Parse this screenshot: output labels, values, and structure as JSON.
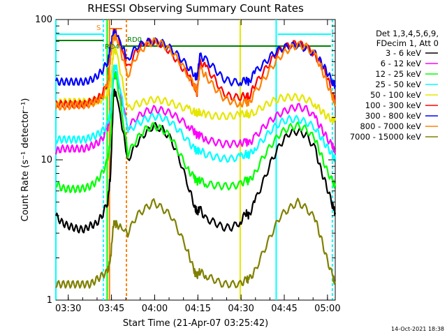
{
  "chart_data": {
    "type": "line",
    "title": "RHESSI Observing Summary Count Rates",
    "xlabel": "Start Time (21-Apr-07 03:25:42)",
    "ylabel": "Count Rate (s⁻¹ detector⁻¹)",
    "y_scale": "log",
    "ylim": [
      1,
      100
    ],
    "xlim_minutes": [
      0,
      97
    ],
    "x_ticks": [
      {
        "label": "03:30",
        "minute": 4.3
      },
      {
        "label": "03:45",
        "minute": 19.3
      },
      {
        "label": "04:00",
        "minute": 34.3
      },
      {
        "label": "04:15",
        "minute": 49.3
      },
      {
        "label": "04:30",
        "minute": 64.3
      },
      {
        "label": "04:45",
        "minute": 79.3
      },
      {
        "label": "05:00",
        "minute": 94.3
      }
    ],
    "y_ticks": [
      {
        "label": "1",
        "value": 1
      },
      {
        "label": "10",
        "value": 10
      },
      {
        "label": "100",
        "value": 100
      }
    ],
    "legend": {
      "header": [
        "Det 1,3,4,5,6,9,",
        "FDecim 1, Att 0"
      ],
      "placement": "right"
    },
    "annotations": {
      "saa_label": "S",
      "rd0_label": "RD0",
      "rd4_label": "RD4"
    },
    "series": [
      {
        "name": "3 - 6 keV",
        "color": "#000000",
        "x": [
          0,
          2,
          4,
          6,
          8,
          10,
          12,
          14,
          16,
          18,
          19,
          20,
          21,
          25,
          28,
          31,
          34,
          37,
          40,
          43,
          46,
          48,
          49,
          50,
          52,
          55,
          58,
          61,
          64,
          66,
          67,
          69,
          72,
          75,
          78,
          81,
          84,
          87,
          90,
          92,
          94,
          96,
          97
        ],
        "y": [
          4.0,
          3.6,
          3.4,
          3.3,
          3.2,
          3.2,
          3.4,
          3.5,
          4.0,
          5.0,
          8.0,
          30,
          30,
          10,
          13,
          15.5,
          17.5,
          16.5,
          14,
          10,
          6.5,
          4.8,
          4.2,
          4.5,
          3.8,
          3.6,
          3.3,
          3.3,
          3.6,
          4.2,
          4.0,
          5.0,
          7.0,
          10,
          13,
          15.5,
          16,
          15,
          12,
          8.5,
          6.5,
          4.8,
          4.2
        ]
      },
      {
        "name": "6 - 12 keV",
        "color": "#ff00ff",
        "x": [
          0,
          2,
          4,
          6,
          8,
          10,
          12,
          14,
          16,
          18,
          19,
          20,
          21,
          25,
          28,
          31,
          34,
          37,
          40,
          43,
          46,
          48,
          49,
          50,
          52,
          55,
          58,
          61,
          64,
          66,
          67,
          69,
          72,
          75,
          78,
          81,
          84,
          87,
          90,
          92,
          94,
          96,
          97
        ],
        "y": [
          11.5,
          12,
          12,
          12,
          12,
          12,
          12.5,
          13,
          14,
          17,
          22,
          40,
          40,
          17,
          20,
          22,
          23,
          22.5,
          21.5,
          19.5,
          17.5,
          16,
          15,
          15,
          14,
          13.5,
          13,
          13,
          13.2,
          13.5,
          13,
          14.5,
          17,
          19.5,
          21.5,
          23,
          24,
          23,
          20,
          17,
          14.5,
          12.5,
          11.5
        ]
      },
      {
        "name": "12 - 25 keV",
        "color": "#00ff00",
        "x": [
          0,
          2,
          4,
          6,
          8,
          10,
          12,
          14,
          16,
          18,
          19,
          20,
          21,
          25,
          28,
          31,
          34,
          37,
          40,
          43,
          46,
          48,
          49,
          50,
          52,
          55,
          58,
          61,
          64,
          66,
          67,
          69,
          72,
          75,
          78,
          81,
          84,
          87,
          90,
          92,
          94,
          96,
          97
        ],
        "y": [
          6.8,
          6.3,
          6.2,
          6.2,
          6.2,
          6.3,
          6.5,
          7.0,
          8.0,
          10,
          14,
          40,
          40,
          11,
          14,
          16.5,
          17.5,
          16.5,
          14.5,
          11,
          8.5,
          7.5,
          7.0,
          7.2,
          6.8,
          6.6,
          6.5,
          6.5,
          6.7,
          7.2,
          7.0,
          8.0,
          10.5,
          13,
          15.5,
          17,
          17.5,
          16.5,
          14,
          11,
          8.5,
          7.0,
          6.5
        ]
      },
      {
        "name": "25 - 50 keV",
        "color": "#00ffff",
        "x": [
          0,
          2,
          4,
          6,
          8,
          10,
          12,
          14,
          16,
          18,
          19,
          20,
          21,
          25,
          28,
          31,
          34,
          37,
          40,
          43,
          46,
          48,
          49,
          50,
          52,
          55,
          58,
          61,
          64,
          66,
          67,
          69,
          72,
          75,
          78,
          81,
          84,
          87,
          90,
          92,
          94,
          96,
          97
        ],
        "y": [
          14,
          14,
          14,
          14,
          14,
          14,
          14.5,
          15,
          16,
          18,
          22,
          45,
          45,
          16,
          18,
          19.5,
          20.5,
          20,
          18.5,
          16,
          13.5,
          12,
          11.5,
          11.8,
          11,
          10.5,
          10.2,
          10.2,
          10.5,
          11,
          10.8,
          12,
          14,
          16.5,
          18.5,
          19.5,
          19.5,
          18.5,
          17,
          14.5,
          12.5,
          11,
          10
        ]
      },
      {
        "name": "50 - 100 keV",
        "color": "#e6e600",
        "x": [
          0,
          2,
          4,
          6,
          8,
          10,
          12,
          14,
          16,
          18,
          19,
          20,
          21,
          25,
          28,
          31,
          34,
          37,
          40,
          43,
          46,
          48,
          49,
          50,
          52,
          55,
          58,
          61,
          64,
          66,
          67,
          69,
          72,
          75,
          78,
          81,
          84,
          87,
          90,
          92,
          94,
          96,
          97
        ],
        "y": [
          25,
          26,
          26,
          26,
          26,
          26,
          26,
          26.5,
          27,
          30,
          35,
          60,
          60,
          23,
          25,
          26,
          27,
          26.5,
          25.5,
          24,
          23,
          22,
          21.5,
          22,
          21,
          20.5,
          20.5,
          20.5,
          21,
          21.5,
          21,
          22,
          24,
          26,
          27.5,
          28,
          28,
          27,
          25,
          22.5,
          20.5,
          19.5,
          19
        ]
      },
      {
        "name": "100 - 300 keV",
        "color": "#ff0000",
        "x": [
          0,
          2,
          4,
          6,
          8,
          10,
          12,
          14,
          16,
          18,
          19,
          20,
          21,
          25,
          28,
          31,
          34,
          37,
          40,
          43,
          46,
          48,
          49,
          50,
          52,
          55,
          58,
          61,
          64,
          66,
          67,
          69,
          72,
          75,
          78,
          81,
          84,
          87,
          90,
          92,
          94,
          96,
          97
        ],
        "y": [
          25,
          25,
          25,
          25,
          25,
          25,
          26,
          27,
          29,
          36,
          60,
          80,
          80,
          45,
          60,
          68,
          70,
          66,
          58,
          48,
          40,
          34,
          30,
          50,
          46,
          38,
          30,
          28,
          28,
          29,
          28,
          34,
          42,
          52,
          61,
          66,
          68,
          64,
          56,
          48,
          40,
          30,
          26
        ]
      },
      {
        "name": "300 - 800 keV",
        "color": "#0000ff",
        "x": [
          0,
          2,
          4,
          6,
          8,
          10,
          12,
          14,
          16,
          18,
          19,
          20,
          21,
          25,
          28,
          31,
          34,
          37,
          40,
          43,
          46,
          48,
          49,
          50,
          52,
          55,
          58,
          61,
          64,
          66,
          67,
          69,
          72,
          75,
          78,
          81,
          84,
          87,
          90,
          92,
          94,
          96,
          97
        ],
        "y": [
          36,
          36,
          36,
          36,
          36,
          36,
          37,
          39,
          43,
          50,
          65,
          80,
          80,
          52,
          64,
          69,
          70,
          68,
          62,
          54,
          46,
          41,
          38,
          55,
          52,
          45,
          38,
          36,
          36,
          37,
          36,
          42,
          48,
          56,
          62,
          65,
          66,
          62,
          57,
          50,
          43,
          36,
          34
        ]
      },
      {
        "name": "800 - 7000 keV",
        "color": "#ff8000",
        "x": [
          0,
          2,
          4,
          6,
          8,
          10,
          12,
          14,
          16,
          18,
          19,
          20,
          21,
          25,
          28,
          31,
          34,
          37,
          40,
          43,
          46,
          48,
          49,
          50,
          52,
          55,
          58,
          61,
          64,
          66,
          67,
          69,
          72,
          75,
          78,
          81,
          84,
          87,
          90,
          92,
          94,
          96,
          97
        ],
        "y": [
          24,
          24,
          24,
          24.5,
          24.5,
          24.5,
          25,
          26,
          28,
          35,
          55,
          75,
          75,
          40,
          55,
          65,
          70,
          67,
          60,
          50,
          40,
          34,
          30,
          45,
          40,
          33,
          28,
          26,
          25,
          26,
          25,
          30,
          37,
          46,
          55,
          62,
          66,
          64,
          56,
          46,
          36,
          28,
          25
        ]
      },
      {
        "name": "7000 - 15000 keV",
        "color": "#808000",
        "x": [
          0,
          2,
          4,
          6,
          8,
          10,
          12,
          14,
          16,
          18,
          19,
          20,
          21,
          25,
          28,
          31,
          34,
          37,
          40,
          43,
          46,
          48,
          49,
          50,
          52,
          55,
          58,
          61,
          64,
          66,
          67,
          69,
          72,
          75,
          78,
          81,
          84,
          87,
          90,
          92,
          94,
          96,
          97
        ],
        "y": [
          1.3,
          1.3,
          1.3,
          1.3,
          1.3,
          1.3,
          1.3,
          1.4,
          1.5,
          1.6,
          2.0,
          3.5,
          3.5,
          3.0,
          4.0,
          4.5,
          5.0,
          4.5,
          4.0,
          3.0,
          2.2,
          1.6,
          1.5,
          1.6,
          1.5,
          1.4,
          1.3,
          1.3,
          1.3,
          1.4,
          1.4,
          1.6,
          2.2,
          3.0,
          4.0,
          4.5,
          5.0,
          4.5,
          3.8,
          2.8,
          2.0,
          1.5,
          1.3
        ]
      }
    ]
  },
  "footer": {
    "timestamp": "14-Oct-2021 18:38"
  }
}
